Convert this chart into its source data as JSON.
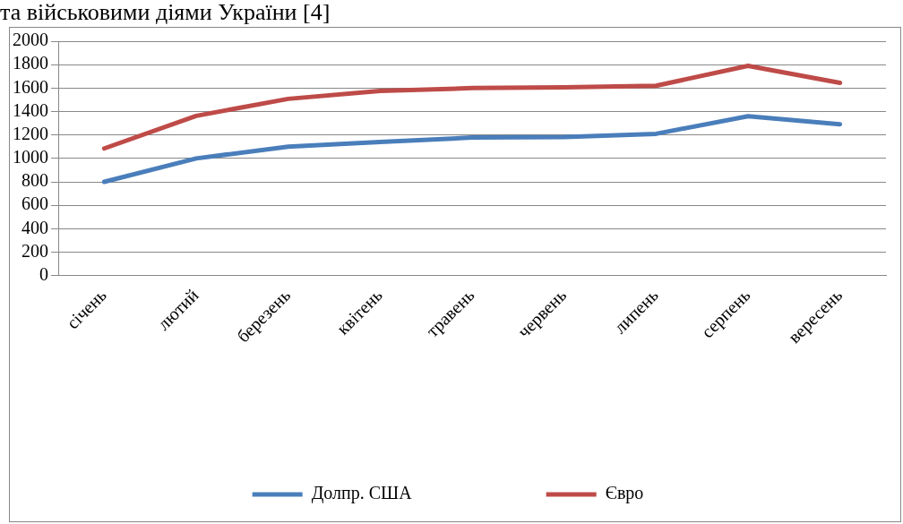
{
  "chart_data": {
    "type": "line",
    "title": "та військовими діями України [4]",
    "categories": [
      "січень",
      "лютий",
      "березень",
      "квітень",
      "травень",
      "червень",
      "липень",
      "серпень",
      "вересень"
    ],
    "series": [
      {
        "name": "Долпр. США",
        "color": "#4a7ebb",
        "values": [
          800,
          1000,
          1100,
          1140,
          1178,
          1182,
          1210,
          1360,
          1292
        ]
      },
      {
        "name": "Євро",
        "color": "#be4b48",
        "values": [
          1085,
          1363,
          1508,
          1575,
          1600,
          1607,
          1620,
          1790,
          1645
        ]
      }
    ],
    "ylim": [
      0,
      2000
    ],
    "yticks": [
      0,
      200,
      400,
      600,
      800,
      1000,
      1200,
      1400,
      1600,
      1800,
      2000
    ],
    "grid": "y",
    "legend": "bottom",
    "marker": "none",
    "line_style": "solid"
  }
}
